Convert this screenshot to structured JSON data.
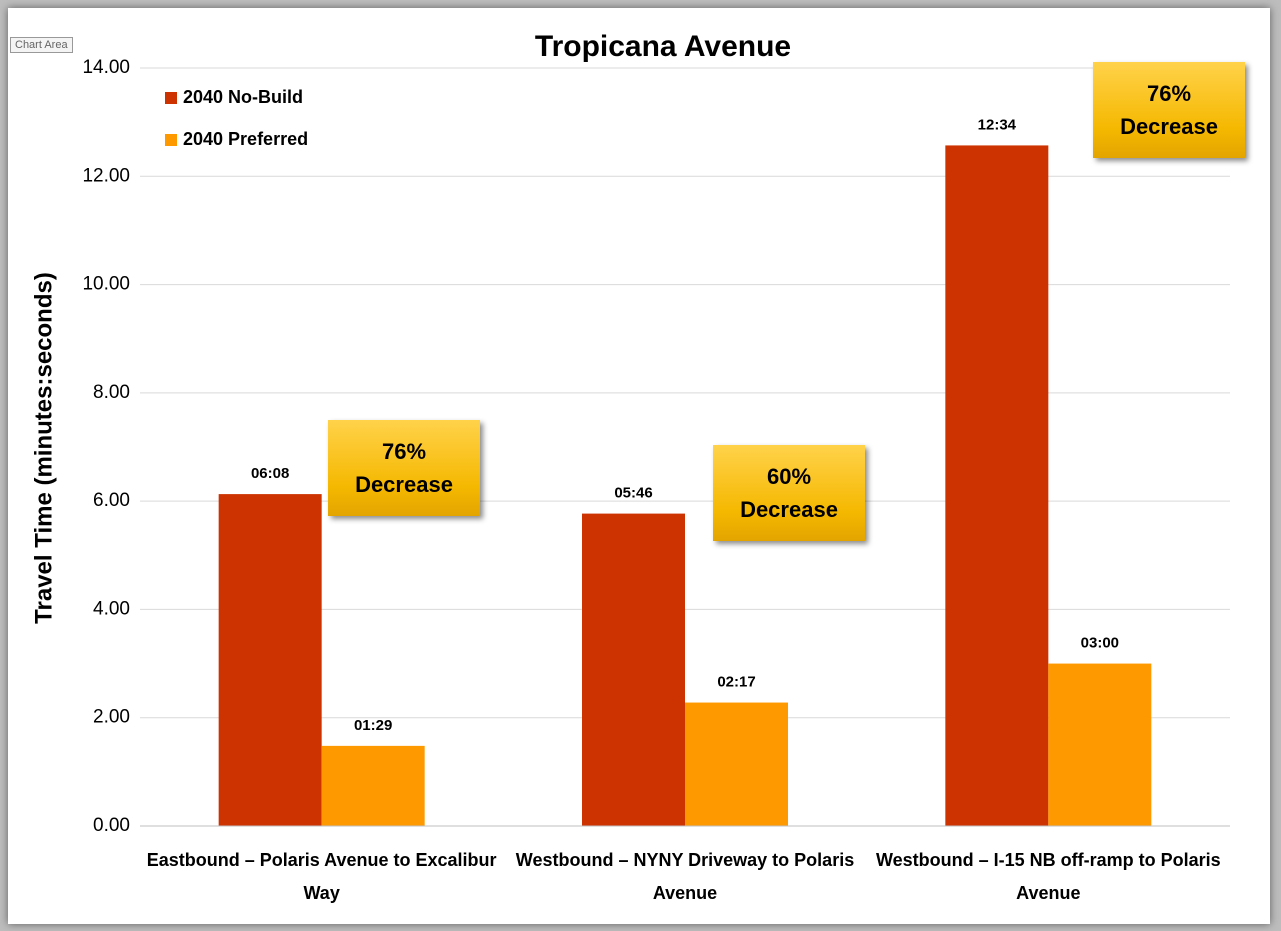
{
  "chart_data": {
    "type": "bar",
    "tooltip": "Chart Area",
    "title": "Tropicana Avenue",
    "y_label": "Travel Time (minutes:seconds)",
    "categories": [
      "Eastbound – Polaris Avenue to Excalibur Way",
      "Westbound – NYNY Driveway to Polaris Avenue",
      "Westbound – I-15 NB off-ramp to Polaris Avenue"
    ],
    "series": [
      {
        "name": "2040 No-Build",
        "color": "#cc3300",
        "values": [
          6.13,
          5.77,
          12.57
        ],
        "value_labels": [
          "06:08",
          "05:46",
          "12:34"
        ]
      },
      {
        "name": "2040 Preferred",
        "color": "#ff9900",
        "values": [
          1.48,
          2.28,
          3.0
        ],
        "value_labels": [
          "01:29",
          "02:17",
          "03:00"
        ]
      }
    ],
    "annotations": [
      "76% Decrease",
      "60% Decrease",
      "76% Decrease"
    ],
    "ylim": [
      0,
      14
    ],
    "yticks": [
      {
        "value": 0,
        "label": "0.00"
      },
      {
        "value": 2,
        "label": "2.00"
      },
      {
        "value": 4,
        "label": "4.00"
      },
      {
        "value": 6,
        "label": "6.00"
      },
      {
        "value": 8,
        "label": "8.00"
      },
      {
        "value": 10,
        "label": "10.00"
      },
      {
        "value": 12,
        "label": "12.00"
      },
      {
        "value": 14,
        "label": "14.00"
      }
    ],
    "grid": true,
    "legend": "top-left"
  }
}
